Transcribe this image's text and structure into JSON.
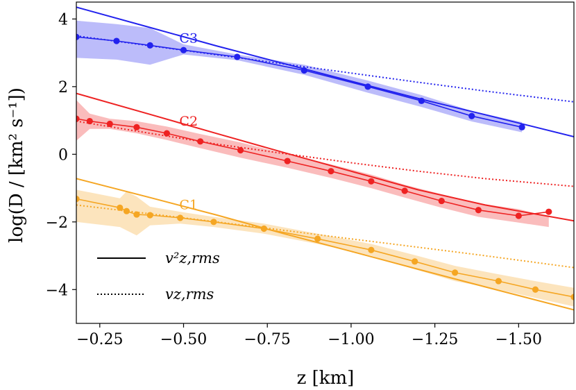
{
  "chart_data": {
    "type": "line",
    "xlabel": "z [km]",
    "ylabel": "log(D / [km² s⁻¹])",
    "xlim": [
      -0.18,
      -1.665
    ],
    "ylim": [
      -5.0,
      4.5
    ],
    "x_inverted": true,
    "xticks": [
      -0.25,
      -0.5,
      -0.75,
      -1.0,
      -1.25,
      -1.5
    ],
    "xtick_labels": [
      "−0.25",
      "−0.50",
      "−0.75",
      "−1.00",
      "−1.25",
      "−1.50"
    ],
    "yticks": [
      -4,
      -2,
      0,
      2,
      4
    ],
    "ytick_labels": [
      "−4",
      "−2",
      "0",
      "2",
      "4"
    ],
    "legend": {
      "position": "lower-left",
      "entries": [
        {
          "label": "v²z,rms",
          "style": "solid"
        },
        {
          "label": "vz,rms",
          "style": "dotted"
        }
      ]
    },
    "series": [
      {
        "name": "C3",
        "color": "#2222ee",
        "points": {
          "x": [
            -0.18,
            -0.3,
            -0.4,
            -0.5,
            -0.66,
            -0.86,
            -1.05,
            -1.21,
            -1.36,
            -1.51
          ],
          "y": [
            3.47,
            3.35,
            3.22,
            3.08,
            2.88,
            2.48,
            2.0,
            1.58,
            1.13,
            0.8
          ]
        },
        "fit_solid": {
          "x": [
            -0.18,
            -0.4,
            -0.6,
            -0.8,
            -1.0,
            -1.2,
            -1.4,
            -1.665
          ],
          "y": [
            4.35,
            3.75,
            3.2,
            2.68,
            2.16,
            1.65,
            1.17,
            0.52
          ]
        },
        "fit_dotted": {
          "x": [
            -0.18,
            -0.4,
            -0.6,
            -0.8,
            -1.0,
            -1.2,
            -1.4,
            -1.665
          ],
          "y": [
            3.5,
            3.21,
            2.94,
            2.67,
            2.4,
            2.13,
            1.87,
            1.55
          ]
        },
        "band_upper": [
          3.95,
          3.85,
          3.73,
          3.25,
          2.95,
          2.65,
          2.18,
          1.75,
          1.28,
          0.95
        ],
        "band_lower": [
          2.85,
          2.8,
          2.65,
          2.95,
          2.78,
          2.35,
          1.82,
          1.4,
          0.97,
          0.65
        ]
      },
      {
        "name": "C2",
        "color": "#ee2222",
        "points": {
          "x": [
            -0.18,
            -0.22,
            -0.28,
            -0.36,
            -0.45,
            -0.55,
            -0.67,
            -0.81,
            -0.94,
            -1.06,
            -1.16,
            -1.27,
            -1.38,
            -1.5,
            -1.59
          ],
          "y": [
            1.05,
            0.98,
            0.9,
            0.8,
            0.62,
            0.38,
            0.12,
            -0.2,
            -0.5,
            -0.8,
            -1.08,
            -1.38,
            -1.65,
            -1.82,
            -1.7
          ]
        },
        "fit_solid": {
          "x": [
            -0.18,
            -0.4,
            -0.6,
            -0.8,
            -1.0,
            -1.2,
            -1.4,
            -1.665
          ],
          "y": [
            1.8,
            1.18,
            0.61,
            0.05,
            -0.5,
            -1.05,
            -1.5,
            -1.97
          ]
        },
        "fit_dotted": {
          "x": [
            -0.18,
            -0.4,
            -0.6,
            -0.8,
            -1.0,
            -1.2,
            -1.4,
            -1.665
          ],
          "y": [
            0.98,
            0.62,
            0.3,
            0.02,
            -0.25,
            -0.5,
            -0.72,
            -0.95
          ]
        },
        "band_upper": [
          1.6,
          1.2,
          1.05,
          0.98,
          0.82,
          0.6,
          0.35,
          0.0,
          -0.3,
          -0.6,
          -0.9,
          -1.18,
          -1.45,
          -1.62,
          -1.85
        ],
        "band_lower": [
          0.4,
          0.75,
          0.75,
          0.62,
          0.42,
          0.18,
          -0.1,
          -0.4,
          -0.7,
          -1.0,
          -1.28,
          -1.58,
          -1.85,
          -2.02,
          -2.15
        ]
      },
      {
        "name": "C1",
        "color": "#f5a623",
        "points": {
          "x": [
            -0.18,
            -0.31,
            -0.33,
            -0.36,
            -0.4,
            -0.49,
            -0.59,
            -0.74,
            -0.9,
            -1.06,
            -1.19,
            -1.31,
            -1.44,
            -1.55,
            -1.665
          ],
          "y": [
            -1.32,
            -1.58,
            -1.68,
            -1.78,
            -1.8,
            -1.88,
            -2.0,
            -2.2,
            -2.5,
            -2.83,
            -3.17,
            -3.5,
            -3.75,
            -4.0,
            -4.22
          ]
        },
        "fit_solid": {
          "x": [
            -0.18,
            -0.4,
            -0.6,
            -0.8,
            -1.0,
            -1.2,
            -1.4,
            -1.665
          ],
          "y": [
            -0.72,
            -1.28,
            -1.8,
            -2.35,
            -2.87,
            -3.4,
            -3.92,
            -4.6
          ]
        },
        "fit_dotted": {
          "x": [
            -0.18,
            -0.4,
            -0.6,
            -0.8,
            -1.0,
            -1.2,
            -1.4,
            -1.665
          ],
          "y": [
            -1.5,
            -1.76,
            -2.0,
            -2.25,
            -2.5,
            -2.75,
            -3.0,
            -3.35
          ]
        },
        "band_upper": [
          -1.05,
          -1.3,
          -1.1,
          -1.25,
          -1.55,
          -1.7,
          -1.85,
          -2.05,
          -2.35,
          -2.65,
          -2.98,
          -3.3,
          -3.55,
          -3.75,
          -3.95
        ],
        "band_lower": [
          -2.0,
          -2.15,
          -2.25,
          -2.4,
          -2.1,
          -2.05,
          -2.15,
          -2.35,
          -2.65,
          -3.0,
          -3.4,
          -3.75,
          -4.0,
          -4.25,
          -4.5
        ]
      }
    ],
    "annotations": [
      {
        "text": "C3",
        "x": -0.515,
        "y": 3.3,
        "color": "#2222ee"
      },
      {
        "text": "C2",
        "x": -0.515,
        "y": 0.85,
        "color": "#ee2222"
      },
      {
        "text": "C1",
        "x": -0.515,
        "y": -1.62,
        "color": "#f5a623"
      }
    ]
  }
}
